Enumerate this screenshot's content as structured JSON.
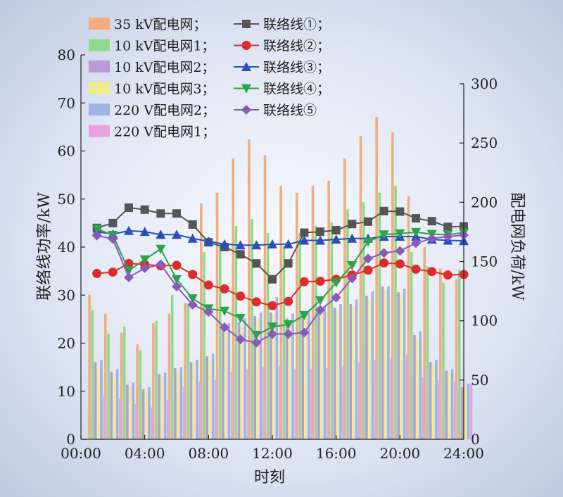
{
  "chart_data": {
    "type": "bar",
    "xlabel": "时刻",
    "ylabel_left": "联络线功率/kW",
    "ylabel_right": "配电网负荷/kW",
    "xlim": [
      0,
      24
    ],
    "ylim_left": [
      0,
      80
    ],
    "ylim_right": [
      0,
      300
    ],
    "x_ticks": [
      "00:00",
      "04:00",
      "08:00",
      "12:00",
      "16:00",
      "20:00",
      "24:00"
    ],
    "y_ticks_left": [
      0,
      10,
      20,
      30,
      40,
      50,
      60,
      70,
      80
    ],
    "y_ticks_right": [
      0,
      50,
      100,
      150,
      200,
      250,
      300
    ],
    "hours": [
      1,
      2,
      3,
      4,
      5,
      6,
      7,
      8,
      9,
      10,
      11,
      12,
      13,
      14,
      15,
      16,
      17,
      18,
      19,
      20,
      21,
      22,
      23,
      24
    ],
    "bar_series": [
      {
        "name": "35 kV配电网；",
        "color": "#f5ab7c",
        "values": [
          122,
          106,
          90,
          80,
          98,
          106,
          115,
          199,
          208,
          237,
          253,
          240,
          214,
          208,
          214,
          218,
          237,
          256,
          272,
          259,
          205,
          162,
          144,
          135
        ]
      },
      {
        "name": "10 kV配电网1；",
        "color": "#8fd98c",
        "values": [
          109,
          89,
          95,
          75,
          100,
          122,
          115,
          158,
          166,
          180,
          186,
          174,
          163,
          174,
          180,
          183,
          194,
          200,
          208,
          214,
          158,
          146,
          132,
          143
        ]
      },
      {
        "name": "10 kV配电网2；",
        "color": "#b79ad8",
        "values": [
          65,
          57,
          46,
          42,
          55,
          60,
          65,
          70,
          95,
          99,
          104,
          107,
          102,
          106,
          109,
          111,
          114,
          121,
          129,
          124,
          88,
          65,
          58,
          44
        ]
      },
      {
        "name": "10 kV配电网3；",
        "color": "#eeee8c",
        "values": [
          61,
          55,
          44,
          40,
          53,
          58,
          64,
          67,
          90,
          96,
          102,
          105,
          99,
          104,
          107,
          109,
          112,
          118,
          126,
          122,
          85,
          63,
          56,
          43
        ]
      },
      {
        "name": "220 V配电网2；",
        "color": "#9db4e6",
        "values": [
          67,
          59,
          48,
          44,
          56,
          61,
          67,
          72,
          98,
          102,
          107,
          120,
          106,
          108,
          112,
          114,
          118,
          125,
          129,
          127,
          91,
          67,
          59,
          47
        ]
      },
      {
        "name": "220 V配电网1；",
        "color": "#e7a3dc",
        "values": [
          37,
          34,
          30,
          27,
          33,
          44,
          49,
          50,
          57,
          59,
          61,
          62,
          59,
          59,
          60,
          62,
          65,
          67,
          69,
          71,
          52,
          50,
          49,
          47
        ]
      }
    ],
    "line_series": [
      {
        "name": "联络线①；",
        "color": "#555555",
        "marker": "square",
        "values": [
          44,
          45,
          48.2,
          47.8,
          47,
          47,
          44.7,
          41,
          40,
          38.5,
          36.6,
          33.3,
          36.6,
          43,
          43.2,
          43.5,
          44.8,
          45.3,
          47.5,
          47.4,
          46,
          45.4,
          44.2,
          44.3
        ]
      },
      {
        "name": "联络线②；",
        "color": "#e02b2b",
        "marker": "circle",
        "values": [
          34.5,
          34.8,
          36.6,
          36.4,
          36.1,
          36.2,
          34.3,
          32.1,
          31.3,
          29.8,
          28.6,
          27.8,
          28.7,
          32.8,
          32.9,
          33.3,
          34.2,
          35.2,
          36.7,
          36.5,
          35.4,
          34.9,
          34.2,
          34.3
        ]
      },
      {
        "name": "联络线③；",
        "color": "#2a4fb8",
        "marker": "triangle-up",
        "values": [
          43.2,
          42.7,
          43.4,
          43.2,
          42.6,
          42.6,
          41.8,
          41.2,
          40.6,
          40.4,
          40.4,
          40.6,
          40.6,
          41.4,
          41.4,
          41.6,
          41.8,
          41.8,
          42.2,
          42.2,
          42.2,
          41.6,
          41.4,
          41.3
        ]
      },
      {
        "name": "联络线④；",
        "color": "#2ea24a",
        "marker": "triangle-down",
        "values": [
          43.8,
          42.5,
          35.1,
          37.4,
          39.6,
          33.3,
          29.3,
          27.2,
          26.7,
          25.2,
          21.7,
          23.4,
          23.9,
          25.8,
          28.9,
          32.6,
          36.2,
          41.1,
          42.6,
          42.8,
          43.1,
          42.7,
          42.6,
          43
        ]
      },
      {
        "name": "联络线⑤",
        "color": "#8a5ab8",
        "marker": "diamond",
        "values": [
          42.4,
          41.7,
          33.7,
          35.6,
          36.4,
          31.8,
          28,
          26.5,
          23.3,
          20.8,
          20.1,
          21.9,
          21.9,
          22.2,
          26.9,
          29.5,
          33.5,
          37.6,
          38.8,
          39.2,
          40.8,
          41.8,
          42.2,
          42.5
        ]
      }
    ]
  }
}
